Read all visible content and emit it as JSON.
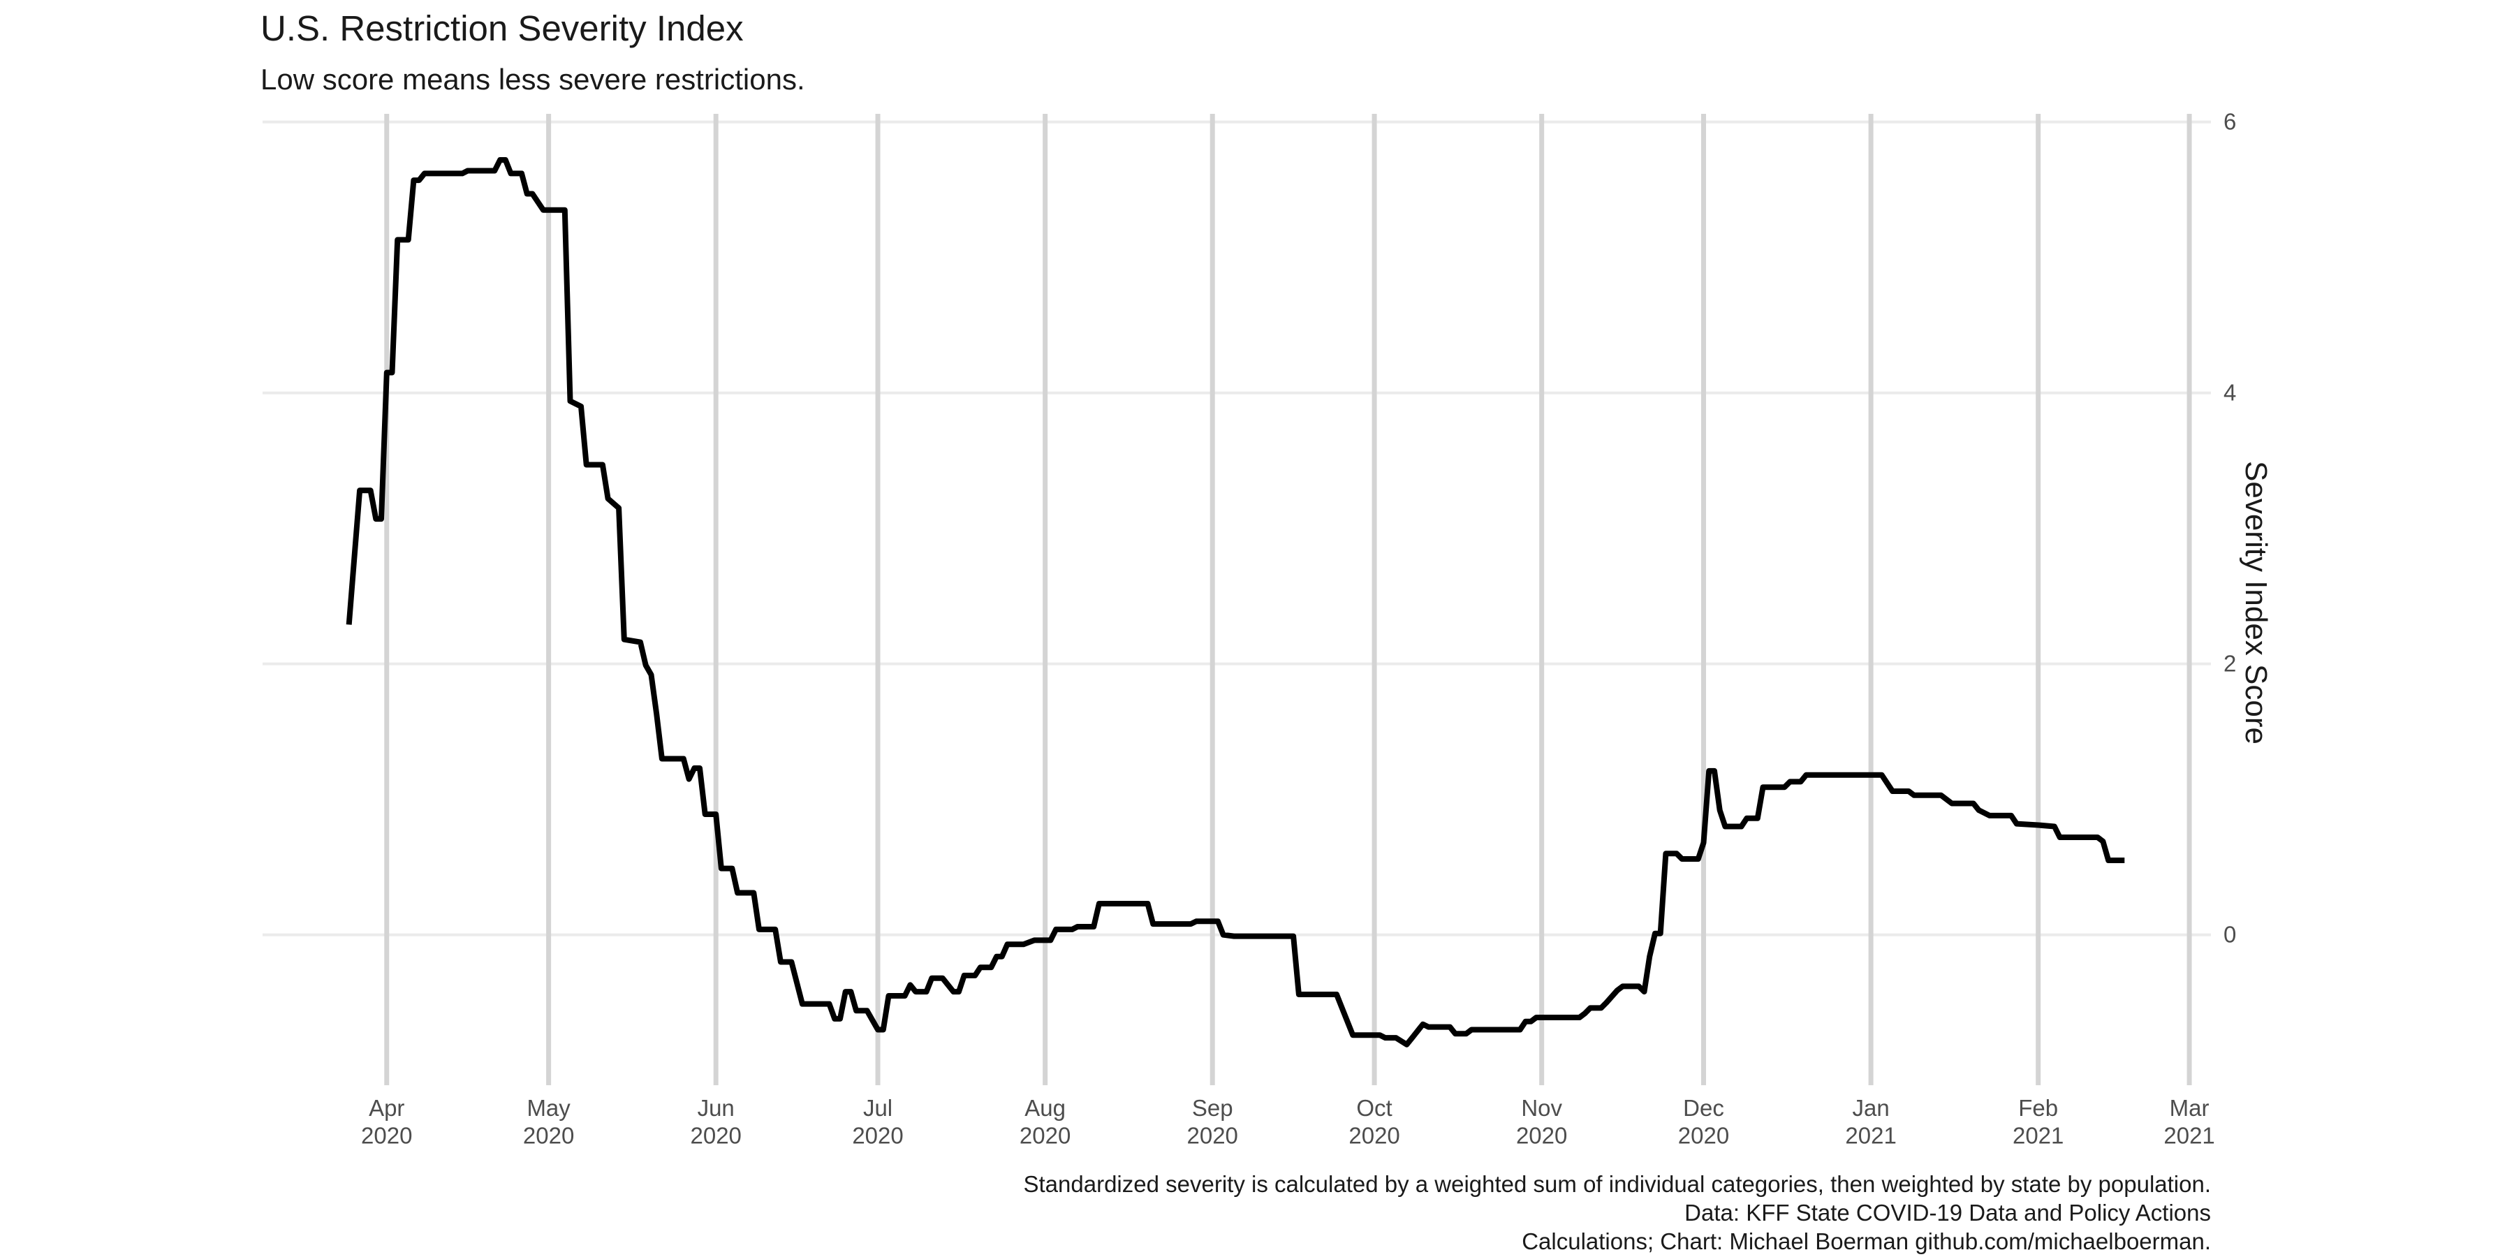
{
  "chart_data": {
    "type": "line",
    "title": "U.S. Restriction Severity Index",
    "subtitle": "Low score means less severe restrictions.",
    "y_axis_label": "Severity Index Score",
    "y_axis_side": "right",
    "caption": [
      "Standardized severity is calculated by a weighted sum of individual categories, then weighted by state by population.",
      "Data: KFF State COVID-19 Data and Policy Actions",
      "Calculations; Chart: Michael Boerman github.com/michaelboerman."
    ],
    "color": "#000000",
    "grid": true,
    "xlim": [
      "2020-03-09",
      "2021-03-05"
    ],
    "ylim": [
      -1.11,
      6.06
    ],
    "yticks": [
      0,
      2,
      4,
      6
    ],
    "xticks": [
      {
        "value": "2020-04-01",
        "label": "Apr\n2020"
      },
      {
        "value": "2020-05-01",
        "label": "May\n2020"
      },
      {
        "value": "2020-06-01",
        "label": "Jun\n2020"
      },
      {
        "value": "2020-07-01",
        "label": "Jul\n2020"
      },
      {
        "value": "2020-08-01",
        "label": "Aug\n2020"
      },
      {
        "value": "2020-09-01",
        "label": "Sep\n2020"
      },
      {
        "value": "2020-10-01",
        "label": "Oct\n2020"
      },
      {
        "value": "2020-11-01",
        "label": "Nov\n2020"
      },
      {
        "value": "2020-12-01",
        "label": "Dec\n2020"
      },
      {
        "value": "2021-01-01",
        "label": "Jan\n2021"
      },
      {
        "value": "2021-02-01",
        "label": "Feb\n2021"
      },
      {
        "value": "2021-03-01",
        "label": "Mar\n2021"
      }
    ],
    "x": [
      "2020-03-25",
      "2020-03-27",
      "2020-03-29",
      "2020-03-30",
      "2020-03-31",
      "2020-04-01",
      "2020-04-02",
      "2020-04-03",
      "2020-04-05",
      "2020-04-06",
      "2020-04-07",
      "2020-04-08",
      "2020-04-15",
      "2020-04-16",
      "2020-04-21",
      "2020-04-22",
      "2020-04-23",
      "2020-04-24",
      "2020-04-26",
      "2020-04-27",
      "2020-04-28",
      "2020-04-30",
      "2020-05-04",
      "2020-05-05",
      "2020-05-07",
      "2020-05-08",
      "2020-05-11",
      "2020-05-12",
      "2020-05-14",
      "2020-05-15",
      "2020-05-18",
      "2020-05-19",
      "2020-05-20",
      "2020-05-21",
      "2020-05-22",
      "2020-05-26",
      "2020-05-27",
      "2020-05-28",
      "2020-05-29",
      "2020-05-30",
      "2020-06-01",
      "2020-06-02",
      "2020-06-04",
      "2020-06-05",
      "2020-06-08",
      "2020-06-09",
      "2020-06-12",
      "2020-06-13",
      "2020-06-15",
      "2020-06-17",
      "2020-06-22",
      "2020-06-23",
      "2020-06-24",
      "2020-06-25",
      "2020-06-26",
      "2020-06-27",
      "2020-06-29",
      "2020-06-30",
      "2020-07-01",
      "2020-07-02",
      "2020-07-03",
      "2020-07-06",
      "2020-07-07",
      "2020-07-08",
      "2020-07-10",
      "2020-07-11",
      "2020-07-13",
      "2020-07-15",
      "2020-07-16",
      "2020-07-17",
      "2020-07-19",
      "2020-07-20",
      "2020-07-22",
      "2020-07-23",
      "2020-07-24",
      "2020-07-25",
      "2020-07-28",
      "2020-07-30",
      "2020-08-02",
      "2020-08-03",
      "2020-08-06",
      "2020-08-07",
      "2020-08-10",
      "2020-08-11",
      "2020-08-20",
      "2020-08-21",
      "2020-08-28",
      "2020-08-29",
      "2020-09-02",
      "2020-09-03",
      "2020-09-05",
      "2020-09-16",
      "2020-09-17",
      "2020-09-24",
      "2020-09-25",
      "2020-09-27",
      "2020-10-02",
      "2020-10-03",
      "2020-10-05",
      "2020-10-07",
      "2020-10-08",
      "2020-10-10",
      "2020-10-11",
      "2020-10-15",
      "2020-10-16",
      "2020-10-18",
      "2020-10-19",
      "2020-10-28",
      "2020-10-29",
      "2020-10-30",
      "2020-10-31",
      "2020-11-08",
      "2020-11-09",
      "2020-11-10",
      "2020-11-12",
      "2020-11-13",
      "2020-11-15",
      "2020-11-16",
      "2020-11-19",
      "2020-11-20",
      "2020-11-21",
      "2020-11-22",
      "2020-11-23",
      "2020-11-24",
      "2020-11-26",
      "2020-11-27",
      "2020-11-30",
      "2020-12-01",
      "2020-12-02",
      "2020-12-03",
      "2020-12-04",
      "2020-12-05",
      "2020-12-08",
      "2020-12-09",
      "2020-12-11",
      "2020-12-12",
      "2020-12-16",
      "2020-12-17",
      "2020-12-19",
      "2020-12-20",
      "2021-01-03",
      "2021-01-05",
      "2021-01-08",
      "2021-01-09",
      "2021-01-14",
      "2021-01-16",
      "2021-01-20",
      "2021-01-21",
      "2021-01-23",
      "2021-01-27",
      "2021-01-28",
      "2021-02-01",
      "2021-02-04",
      "2021-02-05",
      "2021-02-12",
      "2021-02-13",
      "2021-02-14",
      "2021-02-17"
    ],
    "values": [
      2.29,
      3.28,
      3.28,
      3.07,
      3.07,
      4.15,
      4.15,
      5.13,
      5.13,
      5.57,
      5.57,
      5.62,
      5.62,
      5.64,
      5.64,
      5.72,
      5.72,
      5.62,
      5.62,
      5.47,
      5.47,
      5.35,
      5.35,
      3.94,
      3.9,
      3.47,
      3.47,
      3.22,
      3.15,
      2.18,
      2.16,
      1.99,
      1.92,
      1.63,
      1.3,
      1.3,
      1.15,
      1.23,
      1.23,
      0.89,
      0.89,
      0.49,
      0.49,
      0.31,
      0.31,
      0.04,
      0.04,
      -0.2,
      -0.2,
      -0.51,
      -0.51,
      -0.62,
      -0.62,
      -0.42,
      -0.42,
      -0.56,
      -0.56,
      -0.63,
      -0.7,
      -0.7,
      -0.45,
      -0.45,
      -0.37,
      -0.42,
      -0.42,
      -0.32,
      -0.32,
      -0.42,
      -0.42,
      -0.3,
      -0.3,
      -0.24,
      -0.24,
      -0.16,
      -0.16,
      -0.07,
      -0.07,
      -0.04,
      -0.04,
      0.04,
      0.04,
      0.06,
      0.06,
      0.23,
      0.23,
      0.08,
      0.08,
      0.1,
      0.1,
      0,
      -0.01,
      -0.01,
      -0.44,
      -0.44,
      -0.54,
      -0.74,
      -0.74,
      -0.76,
      -0.76,
      -0.81,
      -0.76,
      -0.66,
      -0.68,
      -0.68,
      -0.73,
      -0.73,
      -0.7,
      -0.7,
      -0.64,
      -0.64,
      -0.61,
      -0.61,
      -0.58,
      -0.54,
      -0.54,
      -0.5,
      -0.41,
      -0.38,
      -0.38,
      -0.42,
      -0.16,
      0.01,
      0.01,
      0.6,
      0.6,
      0.56,
      0.56,
      0.68,
      1.21,
      1.21,
      0.92,
      0.8,
      0.8,
      0.86,
      0.86,
      1.09,
      1.09,
      1.13,
      1.13,
      1.18,
      1.18,
      1.06,
      1.06,
      1.03,
      1.03,
      0.97,
      0.97,
      0.92,
      0.88,
      0.88,
      0.82,
      0.81,
      0.8,
      0.72,
      0.72,
      0.69,
      0.55,
      0.55
    ]
  }
}
